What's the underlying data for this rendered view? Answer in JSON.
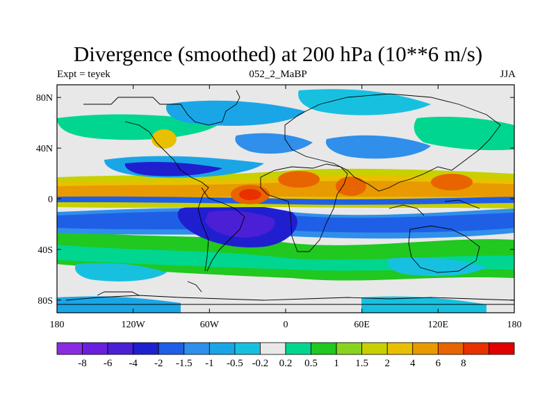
{
  "title": "Divergence (smoothed) at 200 hPa (10**6 m/s)",
  "expt_label": "Expt = teyek",
  "center_label": "052_2_MaBP",
  "season_label": "JJA",
  "map": {
    "lat_ticks": [
      "80N",
      "40N",
      "0",
      "40S",
      "80S"
    ],
    "lon_ticks": [
      "180",
      "120W",
      "60W",
      "0",
      "60E",
      "120E",
      "180"
    ]
  },
  "colorbar": {
    "colors": [
      "#8a2be2",
      "#6a1fe0",
      "#4b1fd6",
      "#1f1fd0",
      "#1f5fe6",
      "#2f8fea",
      "#1aa6e6",
      "#18c0e0",
      "#e8e8e8",
      "#00d690",
      "#20c820",
      "#88d420",
      "#c8d000",
      "#e8c000",
      "#e89a00",
      "#e86400",
      "#e83000",
      "#e00000"
    ],
    "labels": [
      "-8",
      "-6",
      "-4",
      "-2",
      "-1.5",
      "-1",
      "-0.5",
      "-0.2",
      "0.2",
      "0.5",
      "1",
      "1.5",
      "2",
      "4",
      "6",
      "8"
    ]
  }
}
